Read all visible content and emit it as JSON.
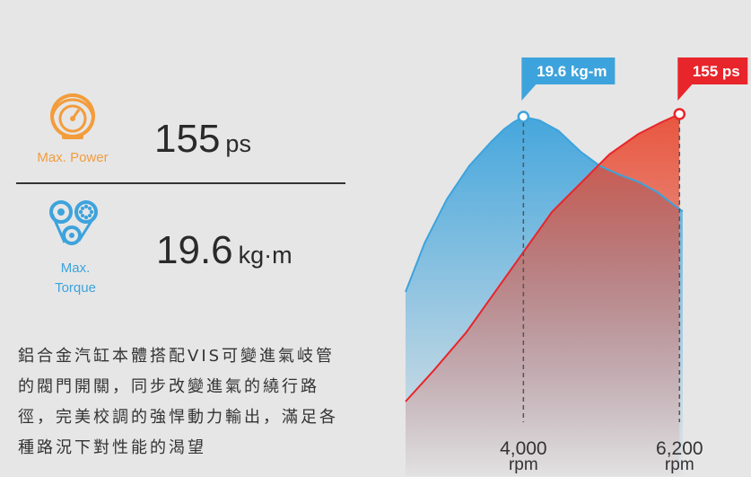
{
  "specs": {
    "power": {
      "label": "Max. Power",
      "value": "155",
      "unit": "ps",
      "icon": "speedometer-icon",
      "color": "#f39c3c"
    },
    "torque": {
      "label_line1": "Max.",
      "label_line2": "Torque",
      "value": "19.6",
      "unit": "kg·m",
      "icon": "timing-belt-icon",
      "color": "#3da3dc"
    }
  },
  "description": {
    "line1": "鋁合金汽缸本體搭配VIS可變進氣岐管",
    "line2": "的閥門開關，同步改變進氣的繞行路",
    "line3": "徑，完美校調的強悍動力輸出，滿足各",
    "line4": "種路況下對性能的渴望"
  },
  "chart_data": {
    "type": "line",
    "series": [
      {
        "name": "torque",
        "color": "#3da3dc",
        "peak_label": "19.6 kg-m",
        "peak_rpm": 4000,
        "points": [
          [
            0,
            0.0
          ],
          [
            0.06,
            0.28
          ],
          [
            0.13,
            0.53
          ],
          [
            0.2,
            0.72
          ],
          [
            0.27,
            0.86
          ],
          [
            0.31,
            0.93
          ],
          [
            0.34,
            0.97
          ],
          [
            0.37,
            1.0
          ],
          [
            0.42,
            0.98
          ],
          [
            0.48,
            0.92
          ],
          [
            0.55,
            0.8
          ],
          [
            0.61,
            0.72
          ],
          [
            0.67,
            0.67
          ],
          [
            0.73,
            0.63
          ],
          [
            0.79,
            0.57
          ],
          [
            0.84,
            0.5
          ],
          [
            0.87,
            0.46
          ]
        ]
      },
      {
        "name": "power",
        "color": "#e8252b",
        "peak_label": "155 ps",
        "peak_rpm": 6200,
        "points": [
          [
            0,
            0.0
          ],
          [
            0.09,
            0.11
          ],
          [
            0.19,
            0.24
          ],
          [
            0.28,
            0.38
          ],
          [
            0.37,
            0.52
          ],
          [
            0.46,
            0.66
          ],
          [
            0.55,
            0.76
          ],
          [
            0.64,
            0.86
          ],
          [
            0.73,
            0.93
          ],
          [
            0.8,
            0.97
          ],
          [
            0.86,
            1.0
          ]
        ]
      }
    ],
    "x_markers": [
      {
        "value": "4,000",
        "unit": "rpm"
      },
      {
        "value": "6,200",
        "unit": "rpm"
      }
    ]
  }
}
